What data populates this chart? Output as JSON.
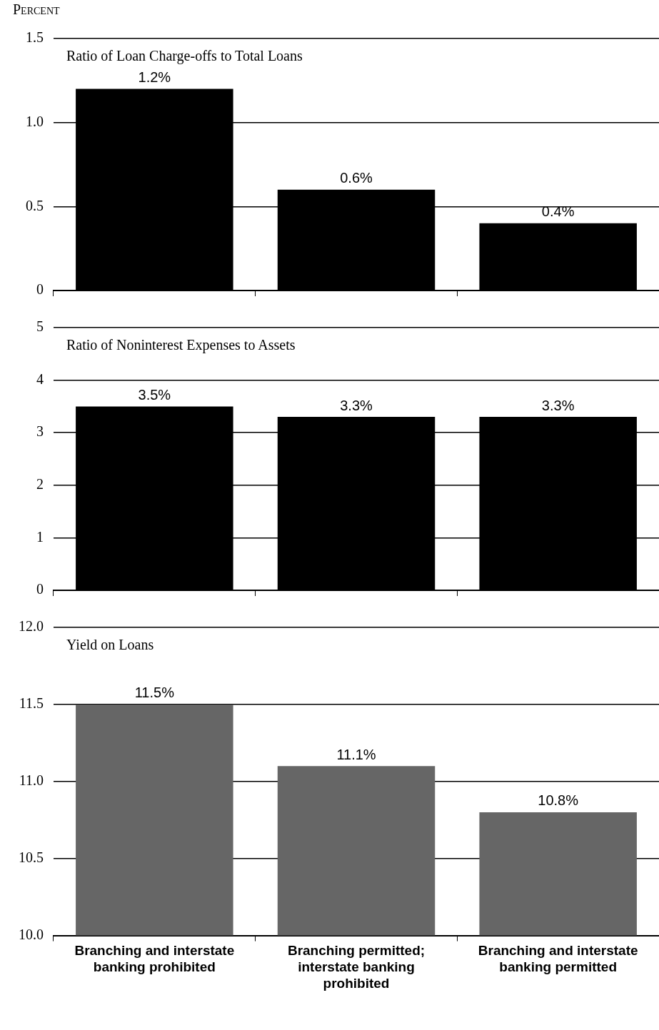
{
  "chart_data": [
    {
      "type": "bar",
      "title": "Ratio of Loan Charge-offs to Total Loans",
      "ylabel": "Percent",
      "categories": [
        null,
        null,
        null
      ],
      "values": [
        1.2,
        0.6,
        0.4
      ],
      "value_labels": [
        "1.2%",
        "0.6%",
        "0.4%"
      ],
      "color": "#000000",
      "ylim": [
        0,
        1.5
      ],
      "yticks": [
        0,
        {
          "value": 0.5,
          "label": "0.5"
        },
        {
          "value": 1,
          "label": "1.0"
        },
        {
          "value": 1.5,
          "label": "1.5"
        }
      ],
      "grid": "y",
      "tick_labels": "y",
      "legend": false
    },
    {
      "type": "bar",
      "title": "Ratio of Noninterest Expenses to Assets",
      "categories": [
        null,
        null,
        null
      ],
      "values": [
        3.5,
        3.3,
        3.3
      ],
      "value_labels": [
        "3.5%",
        "3.3%",
        "3.3%"
      ],
      "color": "#000000",
      "ylim": [
        0,
        5
      ],
      "yticks": [
        0,
        1,
        2,
        3,
        4,
        5
      ],
      "grid": "y",
      "tick_labels": "y",
      "legend": false
    },
    {
      "type": "bar",
      "title": "Yield on Loans",
      "categories": [
        "Branching and interstate banking prohibited",
        "Branching permitted; interstate banking prohibited",
        "Branching and interstate banking permitted"
      ],
      "values": [
        11.5,
        11.1,
        10.8
      ],
      "value_labels": [
        "11.5%",
        "11.1%",
        "10.8%"
      ],
      "color": "#666666",
      "ylim": [
        10,
        12
      ],
      "yticks": [
        {
          "value": 10,
          "label": "10.0"
        },
        {
          "value": 10.5,
          "label": "10.5"
        },
        {
          "value": 11,
          "label": "11.0"
        },
        {
          "value": 11.5,
          "label": "11.5"
        },
        {
          "value": 12,
          "label": "12.0"
        }
      ],
      "grid": "y",
      "legend": false
    }
  ]
}
